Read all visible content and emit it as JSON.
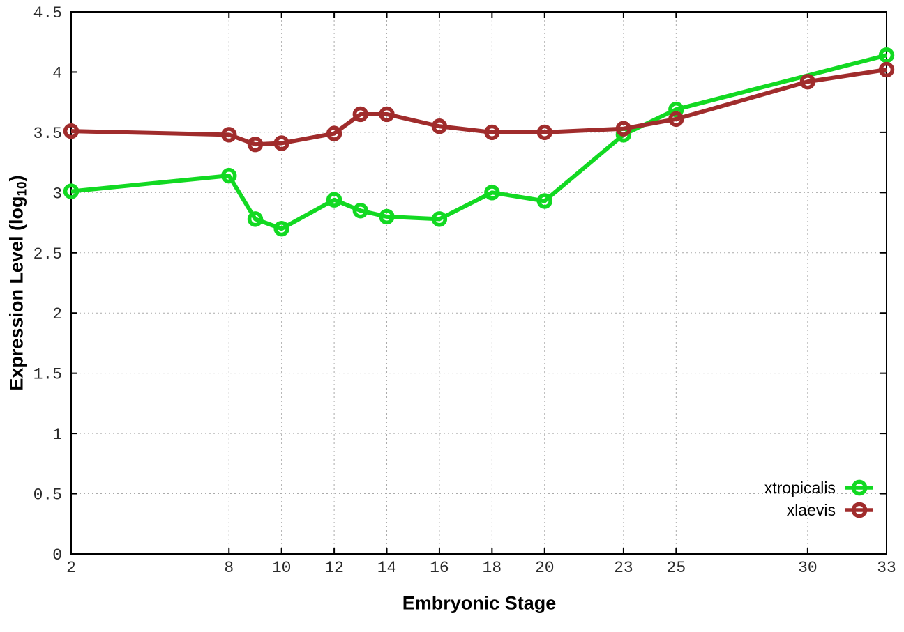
{
  "chart_data": {
    "type": "line",
    "title": "",
    "xlabel": "Embryonic Stage",
    "ylabel": "Expression Level (log10)",
    "ylabel_parts": {
      "prefix": "Expression Level (log",
      "sub": "10",
      "suffix": ")"
    },
    "xlim": [
      2,
      33
    ],
    "ylim": [
      0,
      4.5
    ],
    "xticks": [
      2,
      8,
      10,
      12,
      14,
      16,
      18,
      20,
      23,
      25,
      30,
      33
    ],
    "yticks": [
      0,
      0.5,
      1,
      1.5,
      2,
      2.5,
      3,
      3.5,
      4,
      4.5
    ],
    "ytick_labels": [
      "0",
      "0.5",
      "1",
      "1.5",
      "2",
      "2.5",
      "3",
      "3.5",
      "4",
      "4.5"
    ],
    "grid": true,
    "grid_style": "dotted",
    "legend_position": "bottom-right",
    "marker": "open-circle",
    "series": [
      {
        "name": "xtropicalis",
        "color": "#12d922",
        "x": [
          2,
          8,
          9,
          10,
          12,
          13,
          14,
          16,
          18,
          20,
          23,
          25,
          33
        ],
        "y": [
          3.01,
          3.14,
          2.78,
          2.7,
          2.94,
          2.85,
          2.8,
          2.78,
          3.0,
          2.93,
          3.48,
          3.69,
          4.14
        ]
      },
      {
        "name": "xlaevis",
        "color": "#a02c2c",
        "x": [
          2,
          8,
          9,
          10,
          12,
          13,
          14,
          16,
          18,
          20,
          23,
          25,
          30,
          33
        ],
        "y": [
          3.51,
          3.48,
          3.4,
          3.41,
          3.49,
          3.65,
          3.65,
          3.55,
          3.5,
          3.5,
          3.53,
          3.61,
          3.92,
          4.02
        ]
      }
    ],
    "axis_color": "#000000",
    "tick_label_color": "#2b2b2b",
    "gridline_color": "#aaaaaa"
  }
}
